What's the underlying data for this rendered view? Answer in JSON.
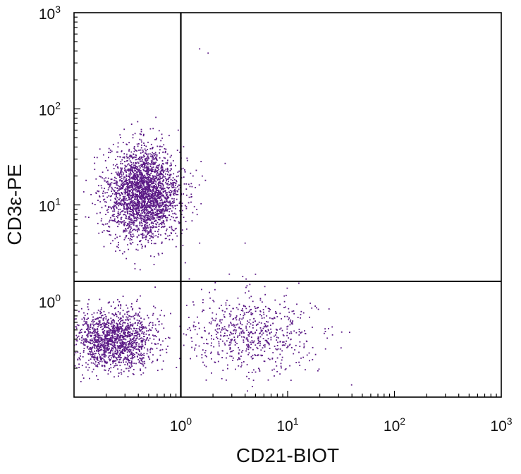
{
  "chart_data": {
    "type": "scatter",
    "title": "",
    "xlabel": "CD21-BIOT",
    "ylabel": "CD3ε-PE",
    "x_scale": "log",
    "y_scale": "log",
    "xlim": [
      0.1,
      1000
    ],
    "ylim": [
      0.1,
      1000
    ],
    "x_ticks": [
      {
        "value": 1,
        "base": "10",
        "exp": "0"
      },
      {
        "value": 10,
        "base": "10",
        "exp": "1"
      },
      {
        "value": 100,
        "base": "10",
        "exp": "2"
      },
      {
        "value": 1000,
        "base": "10",
        "exp": "3"
      }
    ],
    "y_ticks": [
      {
        "value": 1,
        "base": "10",
        "exp": "0"
      },
      {
        "value": 10,
        "base": "10",
        "exp": "1"
      },
      {
        "value": 100,
        "base": "10",
        "exp": "2"
      },
      {
        "value": 1000,
        "base": "10",
        "exp": "3"
      }
    ],
    "gates": {
      "x": 1.0,
      "y": 1.6
    },
    "grid": false,
    "point_color": "#5b1a86",
    "populations": [
      {
        "center_x": 0.45,
        "center_y": 13,
        "spread_x_log": 0.17,
        "spread_y_log": 0.24,
        "count": 2600
      },
      {
        "center_x": 0.24,
        "center_y": 0.4,
        "spread_x_log": 0.19,
        "spread_y_log": 0.15,
        "count": 1500
      },
      {
        "center_x": 4.5,
        "center_y": 0.45,
        "spread_x_log": 0.3,
        "spread_y_log": 0.2,
        "count": 650
      }
    ],
    "points": [
      {
        "x": 1.5,
        "y": 420
      },
      {
        "x": 1.8,
        "y": 380
      },
      {
        "x": 1.0,
        "y": 180
      },
      {
        "x": 1.05,
        "y": 24
      },
      {
        "x": 1.3,
        "y": 20
      },
      {
        "x": 1.7,
        "y": 18
      },
      {
        "x": 2.6,
        "y": 27
      },
      {
        "x": 1.2,
        "y": 12
      },
      {
        "x": 1.5,
        "y": 4
      },
      {
        "x": 1.1,
        "y": 2.5
      },
      {
        "x": 4.0,
        "y": 4
      },
      {
        "x": 3.8,
        "y": 1.8
      },
      {
        "x": 5.0,
        "y": 1.9
      },
      {
        "x": 1.2,
        "y": 1.7
      },
      {
        "x": 2.1,
        "y": 1.55
      }
    ]
  }
}
